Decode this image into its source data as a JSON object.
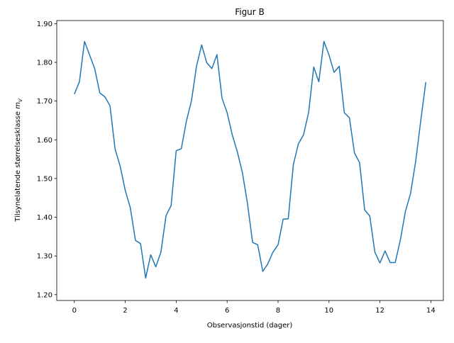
{
  "chart_data": {
    "type": "line",
    "title": "Figur B",
    "xlabel": "Observasjonstid (dager)",
    "ylabel": "Tilsynelatende størrelsesklasse",
    "ylabel_math": {
      "base": "m",
      "sub": "V"
    },
    "color": "#1f77b4",
    "x": [
      0,
      0.2,
      0.4,
      0.6,
      0.8,
      1.0,
      1.2,
      1.4,
      1.6,
      1.8,
      2.0,
      2.2,
      2.4,
      2.6,
      2.8,
      3.0,
      3.2,
      3.4,
      3.6,
      3.8,
      4.0,
      4.2,
      4.4,
      4.6,
      4.8,
      5.0,
      5.2,
      5.4,
      5.6,
      5.8,
      6.0,
      6.2,
      6.4,
      6.6,
      6.8,
      7.0,
      7.2,
      7.4,
      7.6,
      7.8,
      8.0,
      8.2,
      8.4,
      8.6,
      8.8,
      9.0,
      9.2,
      9.4,
      9.6,
      9.8,
      10.0,
      10.2,
      10.4,
      10.6,
      10.8,
      11.0,
      11.2,
      11.4,
      11.6,
      11.8,
      12.0,
      12.2,
      12.4,
      12.6,
      12.8,
      13.0,
      13.2,
      13.4,
      13.6,
      13.8
    ],
    "values": [
      1.718,
      1.75,
      1.854,
      1.819,
      1.784,
      1.721,
      1.711,
      1.688,
      1.576,
      1.532,
      1.469,
      1.424,
      1.34,
      1.332,
      1.243,
      1.303,
      1.272,
      1.31,
      1.404,
      1.43,
      1.572,
      1.577,
      1.648,
      1.701,
      1.791,
      1.845,
      1.799,
      1.784,
      1.82,
      1.707,
      1.67,
      1.613,
      1.569,
      1.515,
      1.435,
      1.335,
      1.329,
      1.26,
      1.28,
      1.31,
      1.329,
      1.395,
      1.396,
      1.536,
      1.59,
      1.613,
      1.671,
      1.788,
      1.75,
      1.854,
      1.819,
      1.774,
      1.79,
      1.67,
      1.657,
      1.566,
      1.541,
      1.419,
      1.403,
      1.31,
      1.282,
      1.313,
      1.283,
      1.283,
      1.341,
      1.415,
      1.461,
      1.543,
      1.648,
      1.749
    ],
    "xlim": [
      -0.69,
      14.49
    ],
    "ylim": [
      1.185,
      1.908
    ],
    "xticks": [
      0,
      2,
      4,
      6,
      8,
      10,
      12,
      14
    ],
    "yticks": [
      {
        "value": 1.2,
        "label": "1.20"
      },
      {
        "value": 1.3,
        "label": "1.30"
      },
      {
        "value": 1.4,
        "label": "1.40"
      },
      {
        "value": 1.5,
        "label": "1.50"
      },
      {
        "value": 1.6,
        "label": "1.60"
      },
      {
        "value": 1.7,
        "label": "1.70"
      },
      {
        "value": 1.8,
        "label": "1.80"
      },
      {
        "value": 1.9,
        "label": "1.90"
      }
    ],
    "grid": false
  }
}
